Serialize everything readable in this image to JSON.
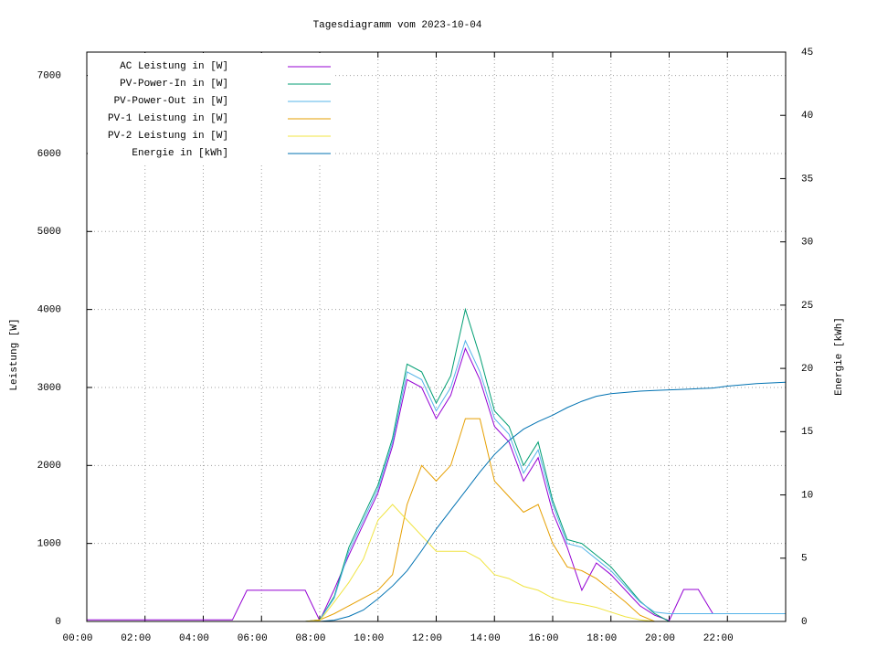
{
  "chart_data": {
    "type": "line",
    "title": "Tagesdiagramm vom 2023-10-04",
    "ylabel": "Leistung [W]",
    "y2label": "Energie [kWh]",
    "x": [
      0,
      0.5,
      1,
      1.5,
      2,
      2.5,
      3,
      3.5,
      4,
      4.5,
      5,
      5.5,
      6,
      6.5,
      7,
      7.5,
      8,
      8.5,
      9,
      9.5,
      10,
      10.5,
      11,
      11.5,
      12,
      12.5,
      13,
      13.5,
      14,
      14.5,
      15,
      15.5,
      16,
      16.5,
      17,
      17.5,
      18,
      18.5,
      19,
      19.5,
      20,
      20.5,
      21,
      21.5,
      22,
      22.5,
      23,
      23.5,
      24
    ],
    "xlim": [
      0,
      24
    ],
    "xticks": [
      {
        "value": 0,
        "label": "00:00"
      },
      {
        "value": 2,
        "label": "02:00"
      },
      {
        "value": 4,
        "label": "04:00"
      },
      {
        "value": 6,
        "label": "06:00"
      },
      {
        "value": 8,
        "label": "08:00"
      },
      {
        "value": 10,
        "label": "10:00"
      },
      {
        "value": 12,
        "label": "12:00"
      },
      {
        "value": 14,
        "label": "14:00"
      },
      {
        "value": 16,
        "label": "16:00"
      },
      {
        "value": 18,
        "label": "18:00"
      },
      {
        "value": 20,
        "label": "20:00"
      },
      {
        "value": 22,
        "label": "22:00"
      }
    ],
    "ylim": [
      0,
      7300
    ],
    "yticks": [
      0,
      1000,
      2000,
      3000,
      4000,
      5000,
      6000,
      7000
    ],
    "y2lim": [
      0,
      45
    ],
    "y2ticks": [
      0,
      5,
      10,
      15,
      20,
      25,
      30,
      35,
      40,
      45
    ],
    "grid": true,
    "legend": "top-left",
    "series": [
      {
        "name": "AC Leistung in [W]",
        "color": "#9400d3",
        "values": [
          20,
          20,
          20,
          20,
          20,
          20,
          20,
          20,
          20,
          20,
          20,
          400,
          400,
          400,
          400,
          400,
          10,
          410,
          850,
          1250,
          1650,
          2250,
          3100,
          3000,
          2600,
          2900,
          3500,
          3100,
          2500,
          2300,
          1800,
          2100,
          1400,
          950,
          400,
          750,
          600,
          400,
          200,
          80,
          10,
          410,
          410,
          100,
          100,
          100,
          100,
          100,
          100
        ]
      },
      {
        "name": "PV-Power-In in [W]",
        "color": "#009e73",
        "values": [
          0,
          0,
          0,
          0,
          0,
          0,
          0,
          0,
          0,
          0,
          0,
          0,
          0,
          0,
          0,
          0,
          20,
          320,
          950,
          1350,
          1750,
          2350,
          3300,
          3200,
          2800,
          3150,
          4000,
          3400,
          2700,
          2500,
          2000,
          2300,
          1550,
          1050,
          1000,
          850,
          700,
          480,
          260,
          100,
          0,
          0,
          0,
          0,
          0,
          0,
          0,
          0,
          0
        ]
      },
      {
        "name": "PV-Power-Out in [W]",
        "color": "#56b4e9",
        "values": [
          0,
          0,
          0,
          0,
          0,
          0,
          0,
          0,
          0,
          0,
          0,
          0,
          0,
          0,
          0,
          0,
          20,
          300,
          900,
          1300,
          1700,
          2300,
          3200,
          3100,
          2700,
          3000,
          3600,
          3200,
          2600,
          2400,
          1900,
          2200,
          1500,
          1000,
          950,
          800,
          650,
          450,
          250,
          120,
          100,
          100,
          100,
          100,
          100,
          100,
          100,
          100,
          100
        ]
      },
      {
        "name": "PV-1 Leistung in [W]",
        "color": "#e69f00",
        "values": [
          0,
          0,
          0,
          0,
          0,
          0,
          0,
          0,
          0,
          0,
          0,
          0,
          0,
          0,
          0,
          0,
          20,
          100,
          200,
          300,
          400,
          600,
          1500,
          2000,
          1800,
          2000,
          2600,
          2600,
          1800,
          1600,
          1400,
          1500,
          1000,
          700,
          650,
          550,
          400,
          250,
          80,
          0,
          0,
          0,
          0,
          0,
          0,
          0,
          0,
          0,
          0
        ]
      },
      {
        "name": "PV-2 Leistung in [W]",
        "color": "#f0e442",
        "values": [
          0,
          0,
          0,
          0,
          0,
          0,
          0,
          0,
          0,
          0,
          0,
          0,
          0,
          0,
          0,
          0,
          10,
          250,
          500,
          800,
          1300,
          1500,
          1300,
          1100,
          900,
          900,
          900,
          800,
          600,
          550,
          450,
          400,
          300,
          250,
          220,
          180,
          120,
          60,
          20,
          0,
          0,
          0,
          0,
          0,
          0,
          0,
          0,
          0,
          0
        ]
      },
      {
        "name": "Energie in [kWh]",
        "color": "#0072b2",
        "axis": "y2",
        "values": [
          0,
          0,
          0,
          0,
          0,
          0,
          0,
          0,
          0,
          0,
          0,
          0,
          0,
          0,
          0,
          0,
          0,
          0.1,
          0.4,
          0.9,
          1.8,
          2.8,
          4.0,
          5.6,
          7.3,
          8.8,
          10.3,
          11.8,
          13.2,
          14.3,
          15.2,
          15.8,
          16.3,
          16.9,
          17.4,
          17.8,
          18.0,
          18.1,
          18.2,
          18.25,
          18.3,
          18.35,
          18.4,
          18.45,
          18.6,
          18.7,
          18.8,
          18.85,
          18.9
        ]
      }
    ]
  }
}
